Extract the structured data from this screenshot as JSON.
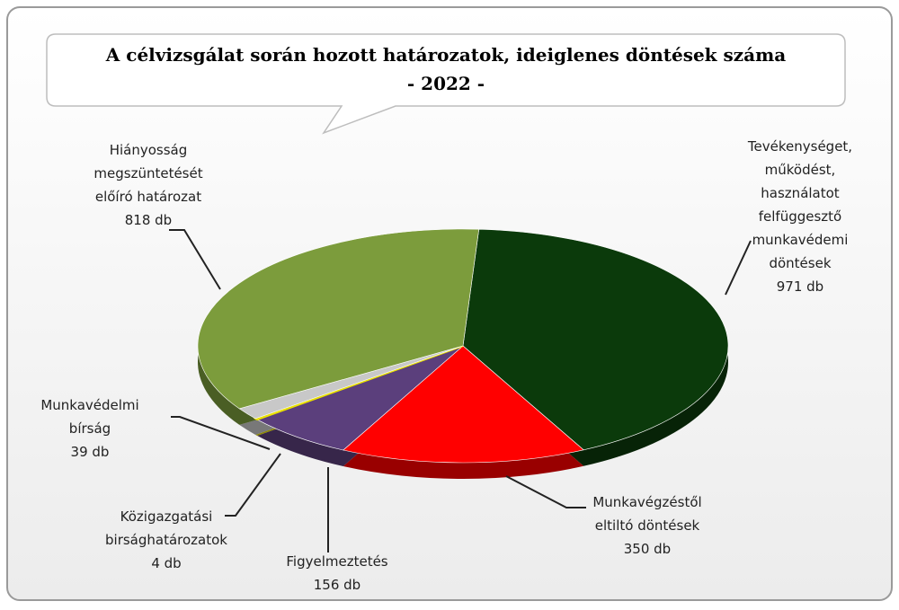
{
  "chart_data": {
    "type": "pie",
    "title": "A célvizsgálat során hozott határozatok, ideiglenes döntések száma",
    "subtitle": "- 2022 -",
    "categories": [
      "Tevékenységet,\nműködést,\nhasználatot\nfelfüggesztő\nmunkavédemi\ndöntések",
      "Munkavégzéstől\neltiltó döntések",
      "Figyelmeztetés",
      "Közigazgatási\nbirsághatározatok",
      "Munkavédelmi\nbírság",
      "Hiányosság\nmegszüntetését\nelőíró határozat"
    ],
    "values": [
      971,
      350,
      156,
      4,
      39,
      818
    ],
    "value_labels": [
      "971 db",
      "350 db",
      "156 db",
      "4 db",
      "39 db",
      "818 db"
    ],
    "colors": [
      "#0b3a0b",
      "#ff0000",
      "#5b3f7c",
      "#e8e000",
      "#c8c8c8",
      "#7c9c3c"
    ]
  }
}
